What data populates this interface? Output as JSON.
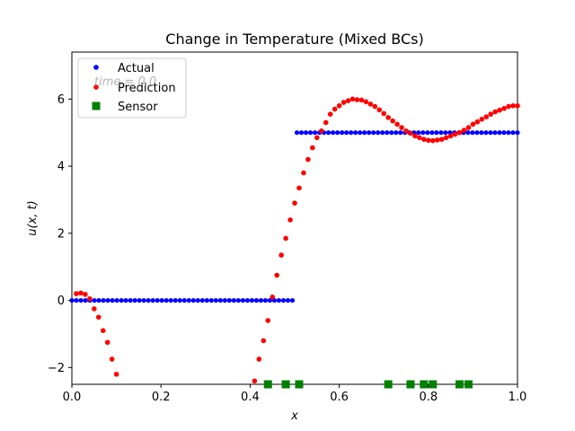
{
  "chart_data": {
    "type": "scatter",
    "title": "Change in Temperature (Mixed BCs)",
    "xlabel": "x",
    "ylabel": "u(x, t)",
    "xlim": [
      0.0,
      1.0
    ],
    "ylim": [
      -2.5,
      7.4
    ],
    "xticks": [
      0.0,
      0.2,
      0.4,
      0.6,
      0.8,
      1.0
    ],
    "xtick_labels": [
      "0.0",
      "0.2",
      "0.4",
      "0.6",
      "0.8",
      "1.0"
    ],
    "yticks": [
      -2,
      0,
      2,
      4,
      6
    ],
    "ytick_labels": [
      "−2",
      "0",
      "2",
      "4",
      "6"
    ],
    "annotation": "time = 0.0",
    "legend_position": "top-left",
    "legend": [
      "Actual",
      "Prediction",
      "Sensor"
    ],
    "colors": {
      "actual": "#0000ff",
      "prediction": "#ff0000",
      "sensor": "#008000"
    },
    "series": [
      {
        "name": "Actual",
        "marker": "circle",
        "description": "Step function: 0 for x < 0.5, 5 for x >= 0.5, sampled at 100 points",
        "step": {
          "x_split": 0.495,
          "low": 0,
          "high": 5,
          "n": 100
        }
      },
      {
        "name": "Prediction",
        "marker": "circle",
        "points": [
          [
            0.01,
            0.2
          ],
          [
            0.02,
            0.22
          ],
          [
            0.03,
            0.18
          ],
          [
            0.04,
            0.05
          ],
          [
            0.05,
            -0.25
          ],
          [
            0.06,
            -0.5
          ],
          [
            0.07,
            -0.9
          ],
          [
            0.08,
            -1.25
          ],
          [
            0.09,
            -1.75
          ],
          [
            0.1,
            -2.2
          ],
          [
            0.41,
            -2.4
          ],
          [
            0.42,
            -1.75
          ],
          [
            0.43,
            -1.2
          ],
          [
            0.44,
            -0.6
          ],
          [
            0.45,
            0.1
          ],
          [
            0.46,
            0.75
          ],
          [
            0.47,
            1.35
          ],
          [
            0.48,
            1.85
          ],
          [
            0.49,
            2.4
          ],
          [
            0.5,
            2.9
          ],
          [
            0.51,
            3.35
          ],
          [
            0.52,
            3.8
          ],
          [
            0.53,
            4.2
          ],
          [
            0.54,
            4.55
          ],
          [
            0.55,
            4.85
          ],
          [
            0.56,
            5.05
          ],
          [
            0.57,
            5.3
          ],
          [
            0.58,
            5.55
          ],
          [
            0.59,
            5.7
          ],
          [
            0.6,
            5.8
          ],
          [
            0.61,
            5.9
          ],
          [
            0.62,
            5.95
          ],
          [
            0.63,
            6.0
          ],
          [
            0.64,
            5.98
          ],
          [
            0.65,
            5.97
          ],
          [
            0.66,
            5.92
          ],
          [
            0.67,
            5.85
          ],
          [
            0.68,
            5.78
          ],
          [
            0.69,
            5.68
          ],
          [
            0.7,
            5.57
          ],
          [
            0.71,
            5.45
          ],
          [
            0.72,
            5.35
          ],
          [
            0.73,
            5.25
          ],
          [
            0.74,
            5.15
          ],
          [
            0.75,
            5.05
          ],
          [
            0.76,
            4.98
          ],
          [
            0.77,
            4.9
          ],
          [
            0.78,
            4.85
          ],
          [
            0.79,
            4.8
          ],
          [
            0.8,
            4.77
          ],
          [
            0.81,
            4.76
          ],
          [
            0.82,
            4.78
          ],
          [
            0.83,
            4.8
          ],
          [
            0.84,
            4.85
          ],
          [
            0.85,
            4.9
          ],
          [
            0.86,
            4.95
          ],
          [
            0.87,
            5.0
          ],
          [
            0.88,
            5.07
          ],
          [
            0.89,
            5.15
          ],
          [
            0.9,
            5.25
          ],
          [
            0.91,
            5.32
          ],
          [
            0.92,
            5.4
          ],
          [
            0.93,
            5.47
          ],
          [
            0.94,
            5.55
          ],
          [
            0.95,
            5.62
          ],
          [
            0.96,
            5.67
          ],
          [
            0.97,
            5.72
          ],
          [
            0.98,
            5.78
          ],
          [
            0.99,
            5.8
          ],
          [
            1.0,
            5.8
          ]
        ]
      },
      {
        "name": "Sensor",
        "marker": "square",
        "y": -2.5,
        "x": [
          0.44,
          0.48,
          0.51,
          0.71,
          0.76,
          0.79,
          0.81,
          0.87,
          0.89
        ]
      }
    ]
  }
}
